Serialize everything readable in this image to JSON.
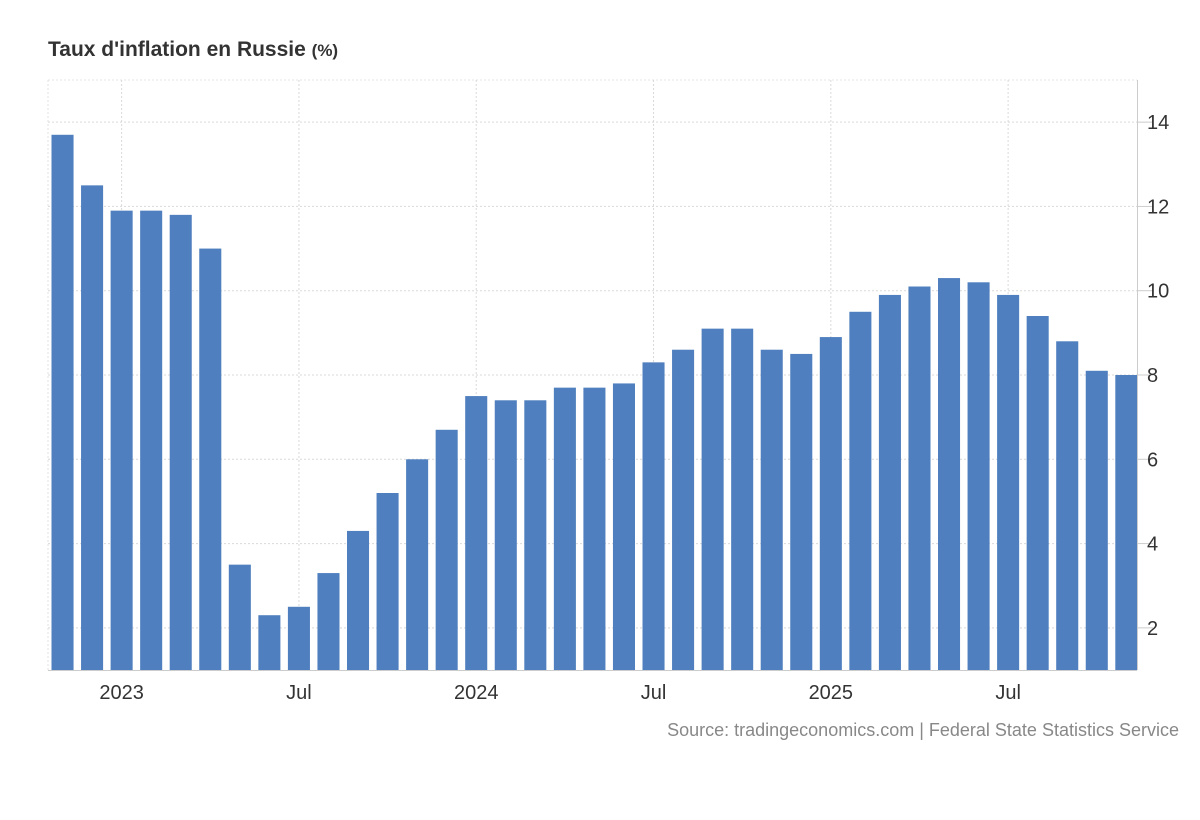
{
  "chart_data": {
    "type": "bar",
    "title": "Taux d'inflation en Russie",
    "unit": "(%)",
    "source": "Source: tradingeconomics.com | Federal State Statistics Service",
    "categories": [
      "2022-11",
      "2022-12",
      "2023-01",
      "2023-02",
      "2023-03",
      "2023-04",
      "2023-05",
      "2023-06",
      "2023-07",
      "2023-08",
      "2023-09",
      "2023-10",
      "2023-11",
      "2023-12",
      "2024-01",
      "2024-02",
      "2024-03",
      "2024-04",
      "2024-05",
      "2024-06",
      "2024-07",
      "2024-08",
      "2024-09",
      "2024-10",
      "2024-11",
      "2024-12",
      "2025-01",
      "2025-02",
      "2025-03",
      "2025-04",
      "2025-05",
      "2025-06",
      "2025-07",
      "2025-08",
      "2025-09",
      "2025-10",
      "2025-11"
    ],
    "values": [
      13.7,
      12.5,
      11.9,
      11.9,
      11.8,
      11.0,
      3.5,
      2.3,
      2.5,
      3.3,
      4.3,
      5.2,
      6.0,
      6.7,
      7.5,
      7.4,
      7.4,
      7.7,
      7.7,
      7.8,
      8.3,
      8.6,
      9.1,
      9.1,
      8.6,
      8.5,
      8.9,
      9.5,
      9.9,
      10.1,
      10.3,
      10.2,
      9.9,
      9.4,
      8.8,
      8.1,
      8.0
    ],
    "x_tick_labels": [
      {
        "label": "2023",
        "category": "2023-01"
      },
      {
        "label": "Jul",
        "category": "2023-07"
      },
      {
        "label": "2024",
        "category": "2024-01"
      },
      {
        "label": "Jul",
        "category": "2024-07"
      },
      {
        "label": "2025",
        "category": "2025-01"
      },
      {
        "label": "Jul",
        "category": "2025-07"
      }
    ],
    "y_ticks": [
      2,
      4,
      6,
      8,
      10,
      12,
      14
    ],
    "ylim": [
      1,
      15
    ],
    "y_axis_side": "right",
    "grid": true,
    "bar_color": "#4f7fbe"
  }
}
